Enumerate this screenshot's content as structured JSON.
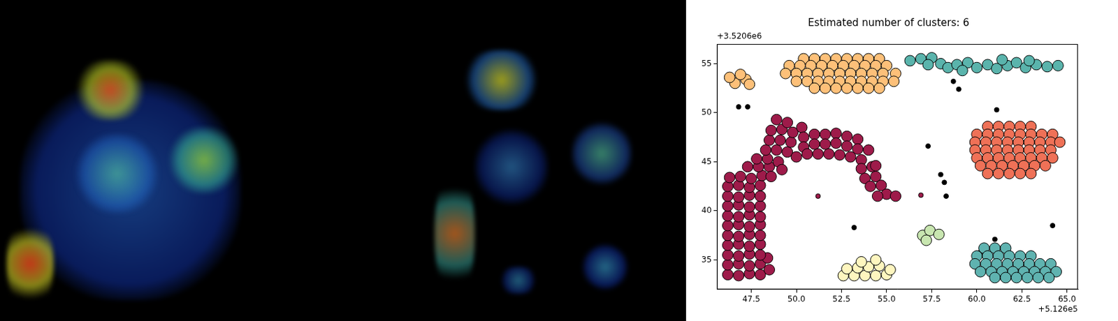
{
  "chart_data": {
    "type": "scatter",
    "title": "Estimated number of clusters: 6",
    "x_offset": "+5.126e5",
    "y_offset": "+3.5206e6",
    "xlim": [
      45.6,
      65.6
    ],
    "ylim": [
      32,
      57
    ],
    "xticks": [
      47.5,
      {
        "value": 50,
        "label": "50.0"
      },
      52.5,
      {
        "value": 55,
        "label": "55.0"
      },
      57.5,
      {
        "value": 60,
        "label": "60.0"
      },
      62.5,
      {
        "value": 65,
        "label": "65.0"
      }
    ],
    "yticks": [
      35,
      40,
      45,
      50,
      55
    ],
    "grid": false,
    "series": [
      {
        "color": "#9e1b4a",
        "marker": "o",
        "values": [
          [
            46.2,
            33.5
          ],
          [
            46.8,
            33.4
          ],
          [
            47.4,
            33.6
          ],
          [
            48.0,
            33.5
          ],
          [
            48.5,
            34.0
          ],
          [
            46.2,
            34.5
          ],
          [
            46.8,
            34.6
          ],
          [
            47.4,
            34.4
          ],
          [
            48.0,
            34.6
          ],
          [
            48.4,
            35.2
          ],
          [
            46.2,
            35.5
          ],
          [
            46.8,
            35.4
          ],
          [
            47.4,
            35.6
          ],
          [
            48.0,
            35.5
          ],
          [
            46.2,
            36.5
          ],
          [
            46.8,
            36.6
          ],
          [
            47.4,
            36.4
          ],
          [
            48.0,
            36.6
          ],
          [
            46.2,
            37.5
          ],
          [
            46.8,
            37.4
          ],
          [
            47.4,
            37.6
          ],
          [
            48.0,
            37.5
          ],
          [
            46.2,
            38.5
          ],
          [
            46.8,
            38.6
          ],
          [
            47.4,
            38.4
          ],
          [
            48.0,
            38.6
          ],
          [
            46.2,
            39.5
          ],
          [
            46.8,
            39.4
          ],
          [
            47.4,
            39.6
          ],
          [
            48.0,
            39.4
          ],
          [
            46.2,
            40.5
          ],
          [
            46.8,
            40.6
          ],
          [
            47.4,
            40.4
          ],
          [
            48.0,
            40.5
          ],
          [
            46.2,
            41.5
          ],
          [
            46.8,
            41.4
          ],
          [
            47.4,
            41.6
          ],
          [
            48.0,
            41.5
          ],
          [
            46.2,
            42.5
          ],
          [
            46.8,
            42.6
          ],
          [
            47.4,
            42.4
          ],
          [
            48.0,
            42.6
          ],
          [
            46.3,
            43.4
          ],
          [
            46.9,
            43.5
          ],
          [
            47.5,
            43.3
          ],
          [
            48.1,
            43.6
          ],
          [
            47.3,
            44.5
          ],
          [
            47.9,
            44.5
          ],
          [
            48.5,
            44.5
          ],
          [
            47.8,
            45.3
          ],
          [
            48.4,
            45.3
          ],
          [
            49.0,
            45.0
          ],
          [
            48.3,
            46.2
          ],
          [
            48.9,
            46.2
          ],
          [
            49.5,
            46.0
          ],
          [
            48.5,
            47.2
          ],
          [
            49.1,
            47.2
          ],
          [
            49.7,
            47.0
          ],
          [
            48.6,
            48.2
          ],
          [
            49.2,
            48.3
          ],
          [
            49.8,
            48.0
          ],
          [
            48.9,
            49.3
          ],
          [
            49.5,
            49.0
          ],
          [
            50.3,
            48.5
          ],
          [
            50.4,
            47.5
          ],
          [
            50.4,
            46.5
          ],
          [
            51.0,
            47.8
          ],
          [
            51.0,
            46.8
          ],
          [
            51.6,
            47.8
          ],
          [
            51.6,
            46.8
          ],
          [
            52.2,
            47.9
          ],
          [
            52.2,
            46.9
          ],
          [
            52.8,
            47.6
          ],
          [
            52.8,
            46.6
          ],
          [
            53.4,
            47.3
          ],
          [
            53.4,
            46.3
          ],
          [
            50.0,
            45.5
          ],
          [
            50.6,
            45.8
          ],
          [
            51.2,
            45.8
          ],
          [
            51.8,
            45.8
          ],
          [
            52.4,
            45.7
          ],
          [
            53.0,
            45.5
          ],
          [
            53.6,
            45.2
          ],
          [
            54.0,
            46.2
          ],
          [
            54.2,
            44.5
          ],
          [
            53.6,
            44.3
          ],
          [
            54.4,
            43.5
          ],
          [
            53.8,
            43.3
          ],
          [
            54.7,
            42.6
          ],
          [
            54.1,
            42.5
          ],
          [
            55.0,
            41.7
          ],
          [
            54.5,
            41.5
          ],
          [
            55.5,
            41.5
          ],
          [
            54.4,
            44.6
          ],
          [
            48.6,
            43.5
          ],
          [
            49.2,
            44.2
          ]
        ]
      },
      {
        "color": "#9e1b4a",
        "marker": ".",
        "values": [
          [
            51.2,
            41.5
          ],
          [
            56.9,
            41.6
          ]
        ]
      },
      {
        "color": "#fdc079",
        "marker": "o",
        "values": [
          [
            50.4,
            55.5
          ],
          [
            51.0,
            55.5
          ],
          [
            51.6,
            55.5
          ],
          [
            52.2,
            55.5
          ],
          [
            52.8,
            55.5
          ],
          [
            53.4,
            55.5
          ],
          [
            54.0,
            55.5
          ],
          [
            54.6,
            55.5
          ],
          [
            49.6,
            54.8
          ],
          [
            50.2,
            54.8
          ],
          [
            50.8,
            54.8
          ],
          [
            51.4,
            54.8
          ],
          [
            52.0,
            54.8
          ],
          [
            52.6,
            54.8
          ],
          [
            53.2,
            54.8
          ],
          [
            53.8,
            54.8
          ],
          [
            54.4,
            54.8
          ],
          [
            55.0,
            54.8
          ],
          [
            49.4,
            54.0
          ],
          [
            50.0,
            54.0
          ],
          [
            50.6,
            54.0
          ],
          [
            51.2,
            54.0
          ],
          [
            51.8,
            54.0
          ],
          [
            52.4,
            54.0
          ],
          [
            53.0,
            54.0
          ],
          [
            53.6,
            54.0
          ],
          [
            54.2,
            54.0
          ],
          [
            54.8,
            54.0
          ],
          [
            55.5,
            54.0
          ],
          [
            50.0,
            53.2
          ],
          [
            50.6,
            53.2
          ],
          [
            51.2,
            53.2
          ],
          [
            51.8,
            53.2
          ],
          [
            52.4,
            53.2
          ],
          [
            53.0,
            53.2
          ],
          [
            53.6,
            53.2
          ],
          [
            54.2,
            53.2
          ],
          [
            54.8,
            53.2
          ],
          [
            55.4,
            53.2
          ],
          [
            51.0,
            52.5
          ],
          [
            51.6,
            52.5
          ],
          [
            52.2,
            52.5
          ],
          [
            52.8,
            52.5
          ],
          [
            53.4,
            52.5
          ],
          [
            54.0,
            52.5
          ],
          [
            54.6,
            52.5
          ],
          [
            46.6,
            53.0
          ],
          [
            47.2,
            53.4
          ],
          [
            46.9,
            53.9
          ],
          [
            47.4,
            52.9
          ],
          [
            46.3,
            53.6
          ]
        ]
      },
      {
        "color": "#5ab4ac",
        "marker": "o",
        "values": [
          [
            56.3,
            55.3
          ],
          [
            56.9,
            55.5
          ],
          [
            57.5,
            55.6
          ],
          [
            58.0,
            55.0
          ],
          [
            58.4,
            54.6
          ],
          [
            58.9,
            54.9
          ],
          [
            59.5,
            55.1
          ],
          [
            60.0,
            54.6
          ],
          [
            60.6,
            54.9
          ],
          [
            61.1,
            54.5
          ],
          [
            61.7,
            54.8
          ],
          [
            62.2,
            55.1
          ],
          [
            62.7,
            54.6
          ],
          [
            63.3,
            54.9
          ],
          [
            63.9,
            54.7
          ],
          [
            64.5,
            54.8
          ],
          [
            57.3,
            54.9
          ],
          [
            59.2,
            54.3
          ],
          [
            61.4,
            55.4
          ],
          [
            62.9,
            55.3
          ]
        ]
      },
      {
        "color": "#ef7157",
        "marker": "o",
        "values": [
          [
            60.6,
            48.6
          ],
          [
            61.2,
            48.6
          ],
          [
            61.8,
            48.6
          ],
          [
            62.4,
            48.6
          ],
          [
            63.0,
            48.6
          ],
          [
            60.0,
            47.8
          ],
          [
            60.6,
            47.8
          ],
          [
            61.2,
            47.8
          ],
          [
            61.8,
            47.8
          ],
          [
            62.4,
            47.8
          ],
          [
            63.0,
            47.8
          ],
          [
            63.6,
            47.8
          ],
          [
            64.2,
            47.8
          ],
          [
            59.9,
            47.0
          ],
          [
            60.5,
            47.0
          ],
          [
            61.1,
            47.0
          ],
          [
            61.7,
            47.0
          ],
          [
            62.3,
            47.0
          ],
          [
            62.9,
            47.0
          ],
          [
            63.5,
            47.0
          ],
          [
            64.1,
            47.0
          ],
          [
            64.6,
            47.0
          ],
          [
            59.9,
            46.2
          ],
          [
            60.5,
            46.2
          ],
          [
            61.1,
            46.2
          ],
          [
            61.7,
            46.2
          ],
          [
            62.3,
            46.2
          ],
          [
            62.9,
            46.2
          ],
          [
            63.5,
            46.2
          ],
          [
            64.1,
            46.2
          ],
          [
            60.0,
            45.4
          ],
          [
            60.6,
            45.4
          ],
          [
            61.2,
            45.4
          ],
          [
            61.8,
            45.4
          ],
          [
            62.4,
            45.4
          ],
          [
            63.0,
            45.4
          ],
          [
            63.6,
            45.4
          ],
          [
            64.2,
            45.4
          ],
          [
            60.2,
            44.6
          ],
          [
            60.8,
            44.6
          ],
          [
            61.4,
            44.6
          ],
          [
            62.0,
            44.6
          ],
          [
            62.6,
            44.6
          ],
          [
            63.2,
            44.6
          ],
          [
            63.8,
            44.6
          ],
          [
            60.6,
            43.8
          ],
          [
            61.2,
            43.8
          ],
          [
            61.8,
            43.8
          ],
          [
            62.4,
            43.8
          ],
          [
            63.0,
            43.8
          ]
        ]
      },
      {
        "color": "#fef6bf",
        "marker": "o",
        "values": [
          [
            52.6,
            33.4
          ],
          [
            53.2,
            33.4
          ],
          [
            53.8,
            33.4
          ],
          [
            54.4,
            33.4
          ],
          [
            55.0,
            33.5
          ],
          [
            52.8,
            34.1
          ],
          [
            53.4,
            34.2
          ],
          [
            54.0,
            34.3
          ],
          [
            54.6,
            34.4
          ],
          [
            55.2,
            34.0
          ],
          [
            53.6,
            34.8
          ],
          [
            54.4,
            35.0
          ]
        ]
      },
      {
        "color": "#c8e6b0",
        "marker": "o",
        "values": [
          [
            57.0,
            37.5
          ],
          [
            57.4,
            38.0
          ],
          [
            57.9,
            37.6
          ],
          [
            57.2,
            37.0
          ]
        ]
      },
      {
        "color": "#5fb3b0",
        "marker": "o",
        "values": [
          [
            60.4,
            36.2
          ],
          [
            61.0,
            36.2
          ],
          [
            61.6,
            36.2
          ],
          [
            60.0,
            35.4
          ],
          [
            60.6,
            35.4
          ],
          [
            61.2,
            35.4
          ],
          [
            61.8,
            35.4
          ],
          [
            62.4,
            35.4
          ],
          [
            63.0,
            35.4
          ],
          [
            59.9,
            34.6
          ],
          [
            60.5,
            34.6
          ],
          [
            61.1,
            34.6
          ],
          [
            61.7,
            34.6
          ],
          [
            62.3,
            34.6
          ],
          [
            62.9,
            34.6
          ],
          [
            63.5,
            34.6
          ],
          [
            64.1,
            34.6
          ],
          [
            60.2,
            33.8
          ],
          [
            60.8,
            33.8
          ],
          [
            61.4,
            33.8
          ],
          [
            62.0,
            33.8
          ],
          [
            62.6,
            33.8
          ],
          [
            63.2,
            33.8
          ],
          [
            63.8,
            33.8
          ],
          [
            64.4,
            33.8
          ],
          [
            61.0,
            33.2
          ],
          [
            61.6,
            33.2
          ],
          [
            62.2,
            33.2
          ],
          [
            62.8,
            33.2
          ],
          [
            63.4,
            33.2
          ],
          [
            64.0,
            33.2
          ]
        ]
      },
      {
        "color": "#000000",
        "marker": ".",
        "values": [
          [
            46.8,
            50.6
          ],
          [
            47.3,
            50.6
          ],
          [
            53.2,
            38.3
          ],
          [
            57.3,
            46.6
          ],
          [
            58.0,
            43.7
          ],
          [
            58.2,
            42.9
          ],
          [
            58.3,
            41.5
          ],
          [
            61.1,
            50.3
          ],
          [
            64.2,
            38.5
          ],
          [
            59.0,
            52.4
          ],
          [
            61.0,
            37.1
          ],
          [
            60.2,
            35.8
          ],
          [
            58.7,
            53.2
          ]
        ]
      }
    ]
  }
}
